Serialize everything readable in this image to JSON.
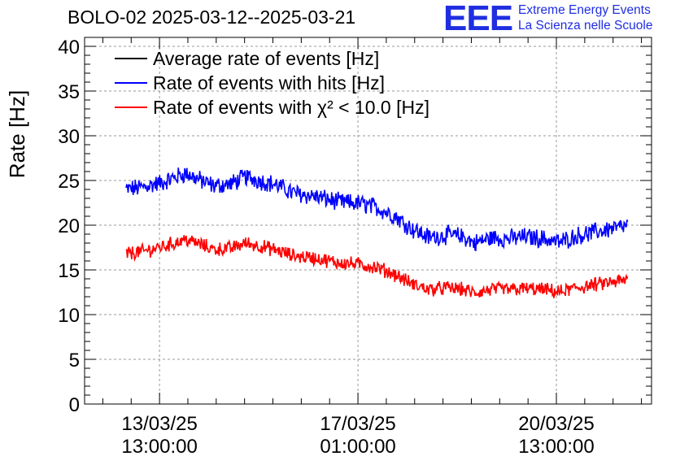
{
  "title": "BOLO-02 2025-03-12--2025-03-21",
  "logo": {
    "mark": "EEE",
    "line1": "Extreme Energy Events",
    "line2": "La Scienza nelle Scuole"
  },
  "chart_data": {
    "type": "line",
    "title": "BOLO-02 2025-03-12--2025-03-21",
    "ylabel": "Rate [Hz]",
    "xlabel": "",
    "ylim": [
      0,
      41
    ],
    "yticks": [
      0,
      5,
      10,
      15,
      20,
      25,
      30,
      35,
      40
    ],
    "grid": true,
    "legend_position": "top-left",
    "x_units": "days since 2025-03-12 00:00",
    "xlim": [
      0.22,
      10.22
    ],
    "xticks": [
      {
        "x": 1.5417,
        "label_date": "13/03/25",
        "label_time": "13:00:00"
      },
      {
        "x": 5.0417,
        "label_date": "17/03/25",
        "label_time": "01:00:00"
      },
      {
        "x": 8.5417,
        "label_date": "20/03/25",
        "label_time": "13:00:00"
      }
    ],
    "series": [
      {
        "name": "Average rate of events [Hz]",
        "color": "#000000",
        "points": []
      },
      {
        "name": "Rate of events with hits [Hz]",
        "color": "#0000ff",
        "noise": 0.9,
        "points": [
          [
            0.95,
            24.0
          ],
          [
            1.2,
            24.2
          ],
          [
            1.6,
            24.8
          ],
          [
            2.0,
            25.8
          ],
          [
            2.2,
            25.2
          ],
          [
            2.5,
            24.4
          ],
          [
            2.8,
            24.6
          ],
          [
            3.05,
            25.4
          ],
          [
            3.3,
            25.0
          ],
          [
            3.6,
            24.5
          ],
          [
            3.9,
            23.6
          ],
          [
            4.3,
            23.2
          ],
          [
            4.7,
            22.6
          ],
          [
            5.1,
            22.4
          ],
          [
            5.4,
            21.9
          ],
          [
            5.7,
            21.0
          ],
          [
            6.0,
            19.6
          ],
          [
            6.3,
            18.6
          ],
          [
            6.6,
            18.9
          ],
          [
            6.9,
            18.7
          ],
          [
            7.1,
            18.0
          ],
          [
            7.4,
            18.6
          ],
          [
            7.7,
            18.5
          ],
          [
            8.0,
            18.7
          ],
          [
            8.3,
            18.5
          ],
          [
            8.6,
            18.1
          ],
          [
            8.9,
            18.8
          ],
          [
            9.2,
            19.2
          ],
          [
            9.5,
            19.6
          ],
          [
            9.75,
            19.8
          ],
          [
            9.8,
            20.0
          ]
        ]
      },
      {
        "name": "Rate of events with χ² < 10.0 [Hz]",
        "color": "#ff0000",
        "noise": 0.7,
        "points": [
          [
            0.95,
            16.8
          ],
          [
            1.2,
            17.0
          ],
          [
            1.6,
            17.6
          ],
          [
            2.0,
            18.4
          ],
          [
            2.2,
            18.0
          ],
          [
            2.5,
            17.3
          ],
          [
            2.8,
            17.4
          ],
          [
            3.05,
            18.0
          ],
          [
            3.3,
            17.7
          ],
          [
            3.6,
            17.2
          ],
          [
            3.9,
            16.6
          ],
          [
            4.3,
            16.3
          ],
          [
            4.7,
            15.8
          ],
          [
            5.1,
            15.6
          ],
          [
            5.4,
            15.2
          ],
          [
            5.7,
            14.5
          ],
          [
            6.0,
            13.4
          ],
          [
            6.3,
            12.8
          ],
          [
            6.6,
            13.0
          ],
          [
            6.9,
            12.8
          ],
          [
            7.1,
            12.4
          ],
          [
            7.4,
            12.8
          ],
          [
            7.7,
            12.8
          ],
          [
            8.0,
            12.9
          ],
          [
            8.3,
            12.8
          ],
          [
            8.6,
            12.5
          ],
          [
            8.9,
            13.0
          ],
          [
            9.2,
            13.3
          ],
          [
            9.5,
            13.6
          ],
          [
            9.75,
            13.8
          ],
          [
            9.8,
            14.0
          ]
        ]
      }
    ]
  }
}
